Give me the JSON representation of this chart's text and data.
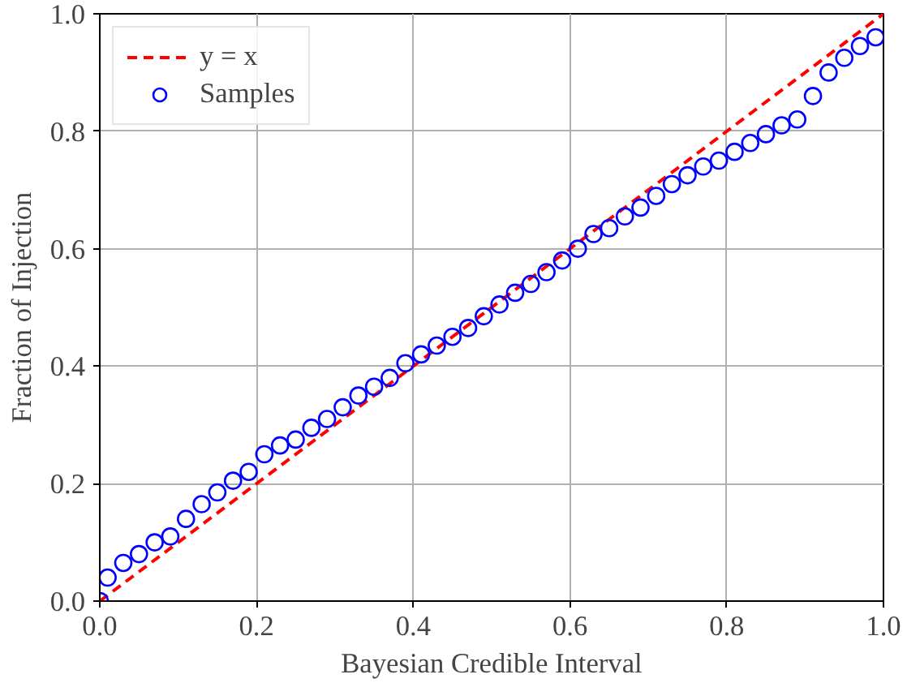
{
  "chart_data": {
    "type": "scatter",
    "xlabel": "Bayesian Credible Interval",
    "ylabel": "Fraction of Injection",
    "xlim": [
      0,
      1
    ],
    "ylim": [
      0,
      1
    ],
    "xticks": [
      {
        "value": 0,
        "label": "0.0"
      },
      {
        "value": 0.2,
        "label": "0.2"
      },
      {
        "value": 0.4,
        "label": "0.4"
      },
      {
        "value": 0.6,
        "label": "0.6"
      },
      {
        "value": 0.8,
        "label": "0.8"
      },
      {
        "value": 1,
        "label": "1.0"
      }
    ],
    "yticks": [
      {
        "value": 0,
        "label": "0.0"
      },
      {
        "value": 0.2,
        "label": "0.2"
      },
      {
        "value": 0.4,
        "label": "0.4"
      },
      {
        "value": 0.6,
        "label": "0.6"
      },
      {
        "value": 0.8,
        "label": "0.8"
      },
      {
        "value": 1,
        "label": "1.0"
      }
    ],
    "grid": true,
    "legend": "top left",
    "series": [
      {
        "name": "y = x",
        "type": "line",
        "color": "#ff0000",
        "line_style": "dashed",
        "marker": "none",
        "x": [
          0,
          1
        ],
        "values": [
          0,
          1
        ]
      },
      {
        "name": "Samples",
        "color": "#0000ff",
        "marker": "circle",
        "x": [
          0,
          0.01,
          0.03,
          0.05,
          0.07,
          0.09,
          0.11,
          0.13,
          0.15,
          0.17,
          0.19,
          0.21,
          0.23,
          0.25,
          0.27,
          0.29,
          0.31,
          0.33,
          0.35,
          0.37,
          0.39,
          0.41,
          0.43,
          0.45,
          0.47,
          0.49,
          0.51,
          0.53,
          0.55,
          0.57,
          0.59,
          0.61,
          0.63,
          0.65,
          0.67,
          0.69,
          0.71,
          0.73,
          0.75,
          0.77,
          0.79,
          0.81,
          0.83,
          0.85,
          0.87,
          0.89,
          0.91,
          0.93,
          0.95,
          0.97,
          0.99
        ],
        "values": [
          0,
          0.04,
          0.065,
          0.08,
          0.1,
          0.11,
          0.14,
          0.165,
          0.185,
          0.205,
          0.22,
          0.25,
          0.265,
          0.275,
          0.295,
          0.31,
          0.33,
          0.35,
          0.365,
          0.38,
          0.405,
          0.42,
          0.435,
          0.45,
          0.465,
          0.485,
          0.505,
          0.525,
          0.54,
          0.56,
          0.58,
          0.6,
          0.625,
          0.635,
          0.655,
          0.67,
          0.69,
          0.71,
          0.725,
          0.74,
          0.75,
          0.765,
          0.78,
          0.795,
          0.81,
          0.82,
          0.86,
          0.9,
          0.925,
          0.945,
          0.96
        ]
      }
    ]
  }
}
